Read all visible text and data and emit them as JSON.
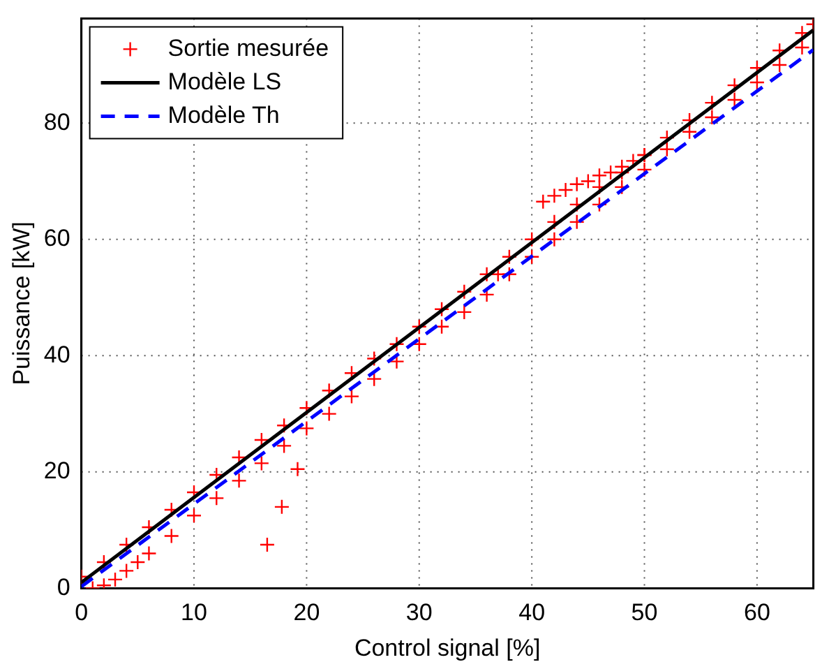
{
  "chart_data": {
    "type": "scatter",
    "xlabel": "Control signal [%]",
    "ylabel": "Puissance [kW]",
    "xlim": [
      0,
      65
    ],
    "ylim": [
      0,
      98
    ],
    "xticks": [
      0,
      10,
      20,
      30,
      40,
      50,
      60
    ],
    "yticks": [
      0,
      20,
      40,
      60,
      80
    ],
    "grid": true,
    "legend": "top left",
    "series": [
      {
        "name": "Sortie mesurée",
        "type": "scatter",
        "marker": "cross",
        "color": "#ff0000",
        "x": [
          0,
          2,
          4,
          6,
          8,
          10,
          12,
          14,
          16,
          18,
          20,
          22,
          24,
          26,
          28,
          30,
          32,
          34,
          36,
          38,
          40,
          42,
          44,
          46,
          48,
          50,
          52,
          54,
          56,
          58,
          60,
          62,
          64,
          65,
          1,
          2,
          3,
          4,
          5,
          6,
          8,
          10,
          12,
          14,
          16,
          18,
          20,
          22,
          24,
          26,
          28,
          30,
          32,
          34,
          36,
          37,
          38,
          40,
          42,
          44,
          46,
          48,
          50,
          52,
          54,
          56,
          58,
          60,
          62,
          64,
          41,
          42,
          43,
          44,
          45,
          46,
          47,
          48,
          49,
          50,
          16.5,
          17.8,
          19.2
        ],
        "values": [
          2,
          4.5,
          7.5,
          10.5,
          13.5,
          16.5,
          19.5,
          22.5,
          25.5,
          28,
          31,
          34,
          37,
          39.5,
          42,
          45,
          48,
          51,
          54,
          57,
          60,
          63,
          66,
          69,
          71.5,
          74.5,
          77.5,
          80.5,
          83.5,
          86.5,
          89.5,
          92.5,
          95.5,
          97,
          0,
          0.5,
          1.5,
          3,
          4.5,
          6,
          9,
          12.5,
          15.5,
          18.5,
          21.5,
          24.5,
          27.5,
          30,
          33,
          36,
          39,
          42,
          45,
          47.5,
          50.5,
          54,
          54,
          57,
          60,
          63,
          66,
          69,
          72,
          75.5,
          78.5,
          81,
          84,
          87,
          90,
          93,
          66.5,
          67.5,
          68.5,
          69.5,
          70,
          71,
          71.5,
          72.5,
          73.5,
          74.5,
          7.5,
          14,
          20.5
        ]
      },
      {
        "name": "Modèle LS",
        "type": "line",
        "line_style": "solid",
        "marker": "none",
        "color": "#000000",
        "x": [
          0,
          65
        ],
        "values": [
          1,
          96
        ]
      },
      {
        "name": "Modèle Th",
        "type": "line",
        "line_style": "dashed",
        "marker": "none",
        "color": "#0000ff",
        "x": [
          0,
          65
        ],
        "values": [
          0.3,
          92.6
        ]
      }
    ]
  }
}
